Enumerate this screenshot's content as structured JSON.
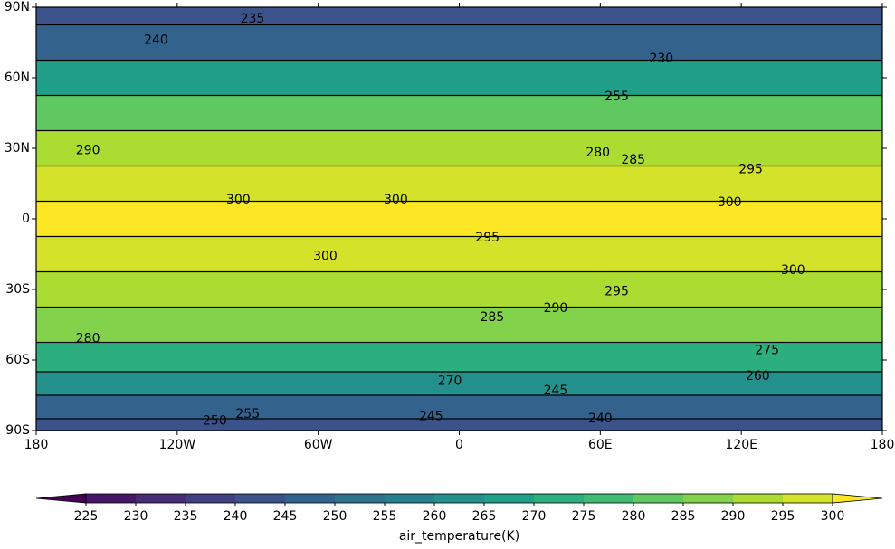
{
  "map": {
    "xlim": [
      -180,
      180
    ],
    "ylim": [
      -90,
      90
    ],
    "xticks": [
      {
        "value": -180,
        "label": "180"
      },
      {
        "value": -120,
        "label": "120W"
      },
      {
        "value": -60,
        "label": "60W"
      },
      0,
      {
        "value": 60,
        "label": "60E"
      },
      {
        "value": 120,
        "label": "120E"
      },
      {
        "value": 180,
        "label": "180"
      }
    ],
    "yticks": [
      {
        "value": 90,
        "label": "90N"
      },
      {
        "value": 60,
        "label": "60N"
      },
      {
        "value": 30,
        "label": "30N"
      },
      0,
      {
        "value": -30,
        "label": "30S"
      },
      {
        "value": -60,
        "label": "60S"
      },
      {
        "value": -90,
        "label": "90S"
      }
    ],
    "colormap": "viridis",
    "zonal_field": {
      "lat": [
        90,
        75,
        60,
        45,
        30,
        15,
        0,
        -15,
        -30,
        -45,
        -60,
        -70,
        -80,
        -90
      ],
      "values": [
        240,
        245,
        265,
        280,
        290,
        298,
        300,
        298,
        293,
        285,
        272,
        262,
        248,
        242
      ]
    },
    "contour_labels": [
      {
        "text": "235",
        "lon": -88,
        "lat": 85
      },
      {
        "text": "240",
        "lon": -129,
        "lat": 76
      },
      {
        "text": "230",
        "lon": 86,
        "lat": 68
      },
      {
        "text": "255",
        "lon": 67,
        "lat": 52
      },
      {
        "text": "290",
        "lon": -158,
        "lat": 29
      },
      {
        "text": "280",
        "lon": 59,
        "lat": 28
      },
      {
        "text": "285",
        "lon": 74,
        "lat": 25
      },
      {
        "text": "295",
        "lon": 124,
        "lat": 21
      },
      {
        "text": "300",
        "lon": -94,
        "lat": 8
      },
      {
        "text": "300",
        "lon": -27,
        "lat": 8
      },
      {
        "text": "300",
        "lon": 115,
        "lat": 7
      },
      {
        "text": "295",
        "lon": 12,
        "lat": -8
      },
      {
        "text": "300",
        "lon": -57,
        "lat": -16
      },
      {
        "text": "300",
        "lon": 142,
        "lat": -22
      },
      {
        "text": "295",
        "lon": 67,
        "lat": -31
      },
      {
        "text": "290",
        "lon": 41,
        "lat": -38
      },
      {
        "text": "285",
        "lon": 14,
        "lat": -42
      },
      {
        "text": "280",
        "lon": -158,
        "lat": -51
      },
      {
        "text": "275",
        "lon": 131,
        "lat": -56
      },
      {
        "text": "260",
        "lon": 127,
        "lat": -67
      },
      {
        "text": "270",
        "lon": -4,
        "lat": -69
      },
      {
        "text": "245",
        "lon": 41,
        "lat": -73
      },
      {
        "text": "255",
        "lon": -90,
        "lat": -83
      },
      {
        "text": "250",
        "lon": -104,
        "lat": -86
      },
      {
        "text": "245",
        "lon": -12,
        "lat": -84
      },
      {
        "text": "240",
        "lon": 60,
        "lat": -85
      }
    ]
  },
  "colorbar": {
    "levels": [
      225,
      230,
      235,
      240,
      245,
      250,
      255,
      260,
      265,
      270,
      275,
      280,
      285,
      290,
      295,
      300
    ],
    "extend": "both",
    "label": "air_temperature(K)"
  }
}
